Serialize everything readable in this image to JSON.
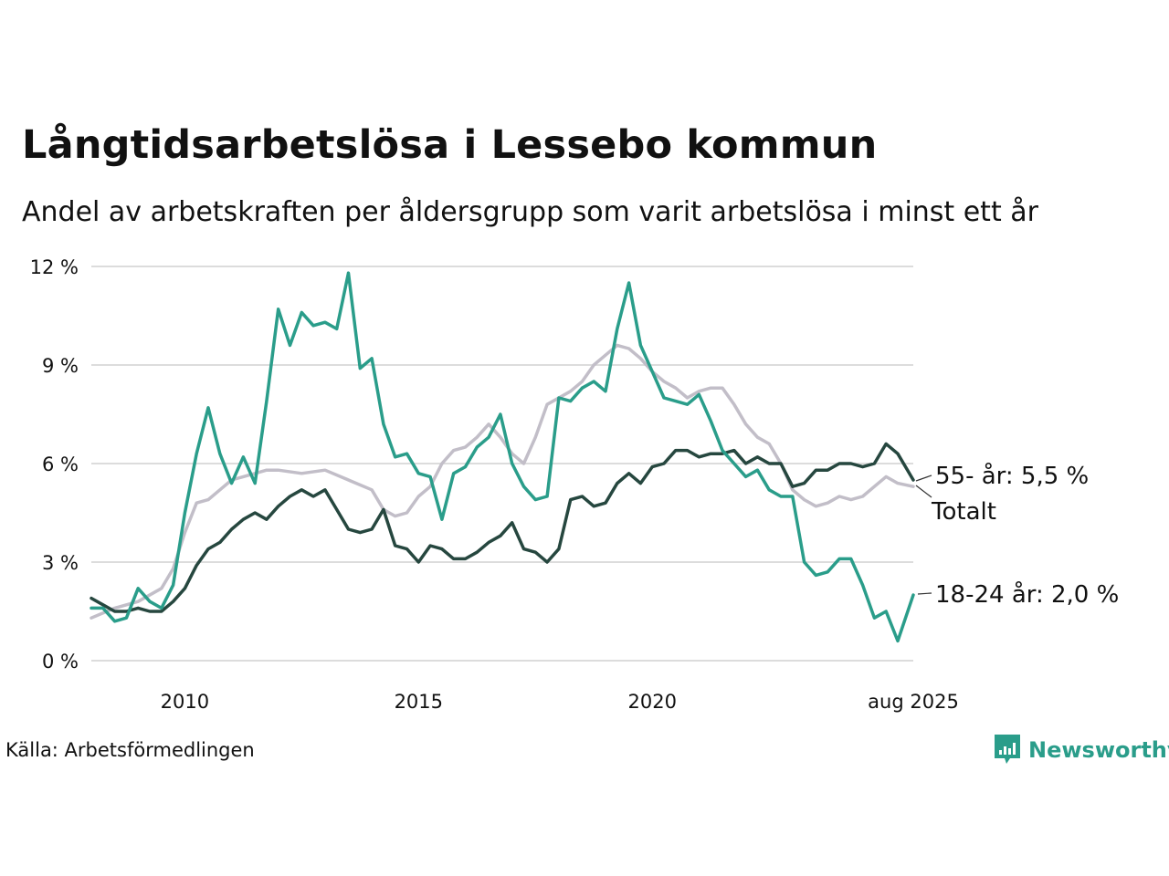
{
  "title": "Långtidsarbetslösa i Lessebo kommun",
  "subtitle": "Andel av arbetskraften per åldersgrupp som varit arbetslösa i minst ett år",
  "source": "Källa: Arbetsförmedlingen",
  "brand": {
    "name": "Newsworthy",
    "icon": "newsworthy-logo-icon",
    "color": "#2a9d8a"
  },
  "chart_data": {
    "type": "line",
    "ylim": [
      0,
      12
    ],
    "yticks": [
      0,
      3,
      6,
      9,
      12
    ],
    "ytick_labels": [
      "0 %",
      "3 %",
      "6 %",
      "9 %",
      "12 %"
    ],
    "xlim": [
      2008.0,
      2025.583
    ],
    "xticks": [
      2010,
      2015,
      2020,
      2025.583
    ],
    "xtick_labels": [
      "2010",
      "2015",
      "2020",
      "aug 2025"
    ],
    "grid": "horizontal",
    "end_labels": {
      "young": "18-24 år: 2,0 %",
      "old": "55- år: 5,5 %",
      "total": "Totalt"
    },
    "series": [
      {
        "key": "total",
        "color": "#c2bec8",
        "x": [
          2008.0,
          2008.5,
          2009.0,
          2009.5,
          2009.75,
          2010.0,
          2010.25,
          2010.5,
          2010.75,
          2011.0,
          2011.25,
          2011.5,
          2011.75,
          2012.0,
          2012.5,
          2013.0,
          2013.5,
          2014.0,
          2014.25,
          2014.5,
          2014.75,
          2015.0,
          2015.25,
          2015.5,
          2015.75,
          2016.0,
          2016.25,
          2016.5,
          2016.75,
          2017.0,
          2017.25,
          2017.5,
          2017.75,
          2018.0,
          2018.25,
          2018.5,
          2018.75,
          2019.0,
          2019.25,
          2019.5,
          2019.75,
          2020.0,
          2020.25,
          2020.5,
          2020.75,
          2021.0,
          2021.25,
          2021.5,
          2021.75,
          2022.0,
          2022.25,
          2022.5,
          2022.75,
          2023.0,
          2023.25,
          2023.5,
          2023.75,
          2024.0,
          2024.25,
          2024.5,
          2024.75,
          2025.0,
          2025.25,
          2025.583
        ],
        "y": [
          1.3,
          1.6,
          1.8,
          2.2,
          2.8,
          3.9,
          4.8,
          4.9,
          5.2,
          5.5,
          5.6,
          5.7,
          5.8,
          5.8,
          5.7,
          5.8,
          5.5,
          5.2,
          4.6,
          4.4,
          4.5,
          5.0,
          5.3,
          6.0,
          6.4,
          6.5,
          6.8,
          7.2,
          6.8,
          6.3,
          6.0,
          6.8,
          7.8,
          8.0,
          8.2,
          8.5,
          9.0,
          9.3,
          9.6,
          9.5,
          9.2,
          8.8,
          8.5,
          8.3,
          8.0,
          8.2,
          8.3,
          8.3,
          7.8,
          7.2,
          6.8,
          6.6,
          6.0,
          5.2,
          4.9,
          4.7,
          4.8,
          5.0,
          4.9,
          5.0,
          5.3,
          5.6,
          5.4,
          5.3
        ]
      },
      {
        "key": "old",
        "color": "#26473f",
        "x": [
          2008.0,
          2008.25,
          2008.5,
          2008.75,
          2009.0,
          2009.25,
          2009.5,
          2009.75,
          2010.0,
          2010.25,
          2010.5,
          2010.75,
          2011.0,
          2011.25,
          2011.5,
          2011.75,
          2012.0,
          2012.25,
          2012.5,
          2012.75,
          2013.0,
          2013.25,
          2013.5,
          2013.75,
          2014.0,
          2014.25,
          2014.5,
          2014.75,
          2015.0,
          2015.25,
          2015.5,
          2015.75,
          2016.0,
          2016.25,
          2016.5,
          2016.75,
          2017.0,
          2017.25,
          2017.5,
          2017.75,
          2018.0,
          2018.25,
          2018.5,
          2018.75,
          2019.0,
          2019.25,
          2019.5,
          2019.75,
          2020.0,
          2020.25,
          2020.5,
          2020.75,
          2021.0,
          2021.25,
          2021.5,
          2021.75,
          2022.0,
          2022.25,
          2022.5,
          2022.75,
          2023.0,
          2023.25,
          2023.5,
          2023.75,
          2024.0,
          2024.25,
          2024.5,
          2024.75,
          2025.0,
          2025.25,
          2025.583
        ],
        "y": [
          1.9,
          1.7,
          1.5,
          1.5,
          1.6,
          1.5,
          1.5,
          1.8,
          2.2,
          2.9,
          3.4,
          3.6,
          4.0,
          4.3,
          4.5,
          4.3,
          4.7,
          5.0,
          5.2,
          5.0,
          5.2,
          4.6,
          4.0,
          3.9,
          4.0,
          4.6,
          3.5,
          3.4,
          3.0,
          3.5,
          3.4,
          3.1,
          3.1,
          3.3,
          3.6,
          3.8,
          4.2,
          3.4,
          3.3,
          3.0,
          3.4,
          4.9,
          5.0,
          4.7,
          4.8,
          5.4,
          5.7,
          5.4,
          5.9,
          6.0,
          6.4,
          6.4,
          6.2,
          6.3,
          6.3,
          6.4,
          6.0,
          6.2,
          6.0,
          6.0,
          5.3,
          5.4,
          5.8,
          5.8,
          6.0,
          6.0,
          5.9,
          6.0,
          6.6,
          6.3,
          5.5
        ]
      },
      {
        "key": "young",
        "color": "#2a9d8a",
        "x": [
          2008.0,
          2008.25,
          2008.5,
          2008.75,
          2009.0,
          2009.25,
          2009.5,
          2009.75,
          2010.0,
          2010.25,
          2010.5,
          2010.75,
          2011.0,
          2011.25,
          2011.5,
          2011.75,
          2012.0,
          2012.25,
          2012.5,
          2012.75,
          2013.0,
          2013.25,
          2013.5,
          2013.75,
          2014.0,
          2014.25,
          2014.5,
          2014.75,
          2015.0,
          2015.25,
          2015.5,
          2015.75,
          2016.0,
          2016.25,
          2016.5,
          2016.75,
          2017.0,
          2017.25,
          2017.5,
          2017.75,
          2018.0,
          2018.25,
          2018.5,
          2018.75,
          2019.0,
          2019.25,
          2019.5,
          2019.75,
          2020.0,
          2020.25,
          2020.5,
          2020.75,
          2021.0,
          2021.25,
          2021.5,
          2021.75,
          2022.0,
          2022.25,
          2022.5,
          2022.75,
          2023.0,
          2023.25,
          2023.5,
          2023.75,
          2024.0,
          2024.25,
          2024.5,
          2024.75,
          2025.0,
          2025.25,
          2025.583
        ],
        "y": [
          1.6,
          1.6,
          1.2,
          1.3,
          2.2,
          1.8,
          1.6,
          2.3,
          4.5,
          6.3,
          7.7,
          6.3,
          5.4,
          6.2,
          5.4,
          7.9,
          10.7,
          9.6,
          10.6,
          10.2,
          10.3,
          10.1,
          11.8,
          8.9,
          9.2,
          7.2,
          6.2,
          6.3,
          5.7,
          5.6,
          4.3,
          5.7,
          5.9,
          6.5,
          6.8,
          7.5,
          6.0,
          5.3,
          4.9,
          5.0,
          8.0,
          7.9,
          8.3,
          8.5,
          8.2,
          10.1,
          11.5,
          9.6,
          8.8,
          8.0,
          7.9,
          7.8,
          8.1,
          7.3,
          6.4,
          6.0,
          5.6,
          5.8,
          5.2,
          5.0,
          5.0,
          3.0,
          2.6,
          2.7,
          3.1,
          3.1,
          2.3,
          1.3,
          1.5,
          0.6,
          2.0
        ]
      }
    ]
  }
}
